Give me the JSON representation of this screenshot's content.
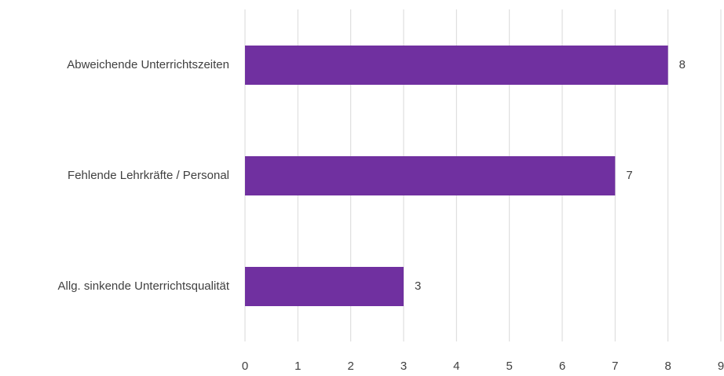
{
  "chart_data": {
    "type": "bar",
    "orientation": "horizontal",
    "categories": [
      "Abweichende Unterrichtszeiten",
      "Fehlende Lehrkräfte / Personal",
      "Allg. sinkende Unterrichtsqualität"
    ],
    "values": [
      8,
      7,
      3
    ],
    "color": "#7030a0",
    "xlim": [
      0,
      9
    ],
    "xticks": [
      0,
      1,
      2,
      3,
      4,
      5,
      6,
      7,
      8,
      9
    ],
    "grid": true
  }
}
